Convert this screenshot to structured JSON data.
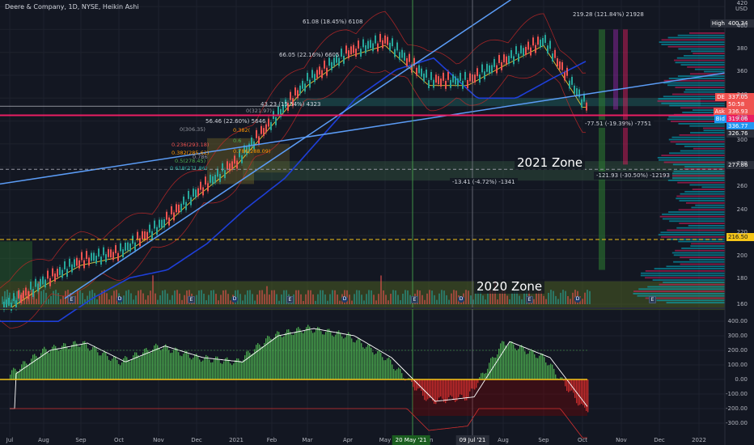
{
  "header": {
    "title": "Deere & Company, 1D, NYSE, Heikin Ashi"
  },
  "chart_data": [
    {
      "type": "candlestick",
      "title": "Deere & Company, 1D, NYSE, Heikin Ashi",
      "ylabel": "USD",
      "ylim": [
        150,
        420
      ],
      "y_ticks": [
        160,
        180,
        200,
        220,
        240,
        260,
        280,
        300,
        320,
        340,
        360,
        380,
        400,
        420
      ],
      "x_ticks": [
        "Jul",
        "Aug",
        "Sep",
        "Oct",
        "Nov",
        "Dec",
        "2021",
        "Feb",
        "Mar",
        "Apr",
        "May",
        "Jun",
        "Jul",
        "Aug",
        "Sep",
        "Oct",
        "Nov",
        "Dec",
        "2022"
      ],
      "x_highlight_labels": [
        "20 May '21",
        "09 Jul '21"
      ],
      "price_path": {
        "months": [
          "Jul",
          "Aug",
          "Sep",
          "Oct",
          "Nov",
          "Dec",
          "2021",
          "Feb",
          "Mar",
          "Apr",
          "May",
          "Jun",
          "Jul",
          "Aug",
          "Sep",
          "Oct"
        ],
        "values": [
          160,
          180,
          198,
          205,
          228,
          258,
          285,
          320,
          355,
          380,
          390,
          355,
          355,
          372,
          390,
          336
        ]
      },
      "zones": [
        {
          "label": "2021 Zone",
          "low": 268,
          "high": 285
        },
        {
          "label": "2020 Zone",
          "low": 155,
          "high": 180
        }
      ],
      "horizontal_levels": [
        {
          "value": 325,
          "color": "#e91e63"
        },
        {
          "value": 277.86,
          "color": "#9598a1"
        },
        {
          "value": 216.5,
          "color": "#f5c518"
        }
      ],
      "measurements": [
        "61.08 (18.45%) 6108",
        "66.05 (22.16%) 6605",
        "43.23 (15.54%) 4323",
        "56.46 (22.60%) 5646",
        "219.28 (121.84%) 21928",
        "-77.51 (-19.39%) -7751",
        "-13.41 (-4.72%) -1341",
        "-121.93 (-30.50%) -12193"
      ],
      "fib_levels": [
        {
          "label": "0(321.97)"
        },
        {
          "label": "0(306.35)"
        },
        {
          "label": "0.382("
        },
        {
          "label": "0.236(293.18)"
        },
        {
          "label": "0.382(285.62)"
        },
        {
          "label": "0.5(278.45)"
        },
        {
          "label": "0.618(271.86)"
        },
        {
          "label": "0.786(288.09)"
        },
        {
          "label": "0.786"
        },
        {
          "label": "0.6"
        }
      ],
      "price_tags": [
        {
          "label": "High",
          "value": "400.34",
          "bg": "#2a2e39"
        },
        {
          "label": "DE",
          "value": "337.05",
          "bg": "#ef5350"
        },
        {
          "label": "",
          "value": "50:58",
          "bg": "#ef5350"
        },
        {
          "label": "Ask",
          "value": "336.93",
          "bg": "#ef5350"
        },
        {
          "label": "",
          "value": "319.06",
          "bg": "#e91e63"
        },
        {
          "label": "Bid",
          "value": "336.77",
          "bg": "#2196f3"
        },
        {
          "label": "",
          "value": "326.76",
          "bg": "#2a2e39"
        },
        {
          "label": "",
          "value": "277.86",
          "bg": "#2a2e39"
        },
        {
          "label": "",
          "value": "216.50",
          "bg": "#f5c518"
        }
      ],
      "event_markers": [
        "E",
        "D",
        "E",
        "D",
        "E",
        "D",
        "E",
        "D",
        "E",
        "D",
        "E"
      ]
    },
    {
      "type": "histogram",
      "ylim": [
        -300,
        500
      ],
      "y_ticks": [
        -300,
        -200,
        -100,
        0,
        100,
        200,
        300,
        400
      ],
      "y_tick_labels": [
        "-300.00",
        "-200.00",
        "-100.00",
        "0.00",
        "100.00",
        "200.00",
        "300.00",
        "400.00"
      ],
      "oscillator_path": {
        "months": [
          "Jul",
          "Aug",
          "Sep",
          "Oct",
          "Nov",
          "Dec",
          "2021",
          "Feb",
          "Mar",
          "Apr",
          "May",
          "Jun",
          "Jul",
          "Aug",
          "Sep",
          "Oct"
        ],
        "values": [
          40,
          200,
          250,
          120,
          230,
          150,
          120,
          300,
          350,
          300,
          150,
          -150,
          -120,
          260,
          150,
          -200
        ]
      },
      "zero_line": 0
    }
  ]
}
